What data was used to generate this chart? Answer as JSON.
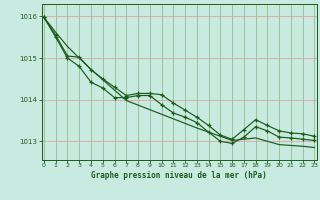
{
  "title": "Graphe pression niveau de la mer (hPa)",
  "bg_color": "#c8eae0",
  "grid_color_h": "#e8a0a0",
  "grid_color_v": "#90c090",
  "line_color": "#1a5c1a",
  "xlim_min": -0.2,
  "xlim_max": 23.2,
  "ylim_min": 1012.55,
  "ylim_max": 1016.3,
  "yticks": [
    1013,
    1014,
    1015,
    1016
  ],
  "xticks": [
    0,
    1,
    2,
    3,
    4,
    5,
    6,
    7,
    8,
    9,
    10,
    11,
    12,
    13,
    14,
    15,
    16,
    17,
    18,
    19,
    20,
    21,
    22,
    23
  ],
  "line_straight": [
    1015.98,
    1015.62,
    1015.28,
    1015.0,
    1014.73,
    1014.48,
    1014.23,
    1013.98,
    1013.87,
    1013.76,
    1013.65,
    1013.54,
    1013.43,
    1013.32,
    1013.22,
    1013.12,
    1013.02,
    1013.05,
    1013.08,
    1013.0,
    1012.92,
    1012.9,
    1012.88,
    1012.85
  ],
  "line_mid": [
    1015.98,
    1015.55,
    1015.05,
    1015.02,
    1014.72,
    1014.5,
    1014.3,
    1014.1,
    1014.15,
    1014.15,
    1014.12,
    1013.92,
    1013.75,
    1013.58,
    1013.38,
    1013.15,
    1013.05,
    1013.28,
    1013.52,
    1013.38,
    1013.25,
    1013.2,
    1013.18,
    1013.12
  ],
  "line_wavy": [
    1015.98,
    1015.5,
    1015.0,
    1014.8,
    1014.42,
    1014.28,
    1014.05,
    1014.05,
    1014.1,
    1014.1,
    1013.88,
    1013.68,
    1013.58,
    1013.45,
    1013.22,
    1013.0,
    1012.95,
    1013.1,
    1013.35,
    1013.25,
    1013.1,
    1013.08,
    1013.05,
    1013.02
  ]
}
